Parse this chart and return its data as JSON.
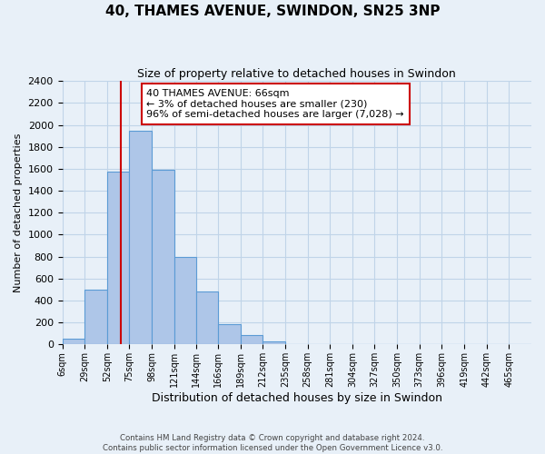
{
  "title": "40, THAMES AVENUE, SWINDON, SN25 3NP",
  "subtitle": "Size of property relative to detached houses in Swindon",
  "xlabel": "Distribution of detached houses by size in Swindon",
  "ylabel": "Number of detached properties",
  "bin_labels": [
    "6sqm",
    "29sqm",
    "52sqm",
    "75sqm",
    "98sqm",
    "121sqm",
    "144sqm",
    "166sqm",
    "189sqm",
    "212sqm",
    "235sqm",
    "258sqm",
    "281sqm",
    "304sqm",
    "327sqm",
    "350sqm",
    "373sqm",
    "396sqm",
    "419sqm",
    "442sqm",
    "465sqm"
  ],
  "bin_edges": [
    6,
    29,
    52,
    75,
    98,
    121,
    144,
    166,
    189,
    212,
    235,
    258,
    281,
    304,
    327,
    350,
    373,
    396,
    419,
    442,
    465,
    488
  ],
  "bar_heights": [
    50,
    500,
    1575,
    1950,
    1590,
    800,
    480,
    185,
    90,
    30,
    0,
    0,
    0,
    0,
    0,
    0,
    0,
    0,
    0,
    0,
    0
  ],
  "bar_color": "#aec6e8",
  "bar_edge_color": "#5b9bd5",
  "property_line_x": 66,
  "property_line_color": "#cc0000",
  "annotation_title": "40 THAMES AVENUE: 66sqm",
  "annotation_line1": "← 3% of detached houses are smaller (230)",
  "annotation_line2": "96% of semi-detached houses are larger (7,028) →",
  "annotation_box_color": "#cc0000",
  "annotation_bg": "#ffffff",
  "ylim": [
    0,
    2400
  ],
  "yticks": [
    0,
    200,
    400,
    600,
    800,
    1000,
    1200,
    1400,
    1600,
    1800,
    2000,
    2200,
    2400
  ],
  "grid_color": "#c0d4e8",
  "bg_color": "#e8f0f8",
  "footer1": "Contains HM Land Registry data © Crown copyright and database right 2024.",
  "footer2": "Contains public sector information licensed under the Open Government Licence v3.0."
}
